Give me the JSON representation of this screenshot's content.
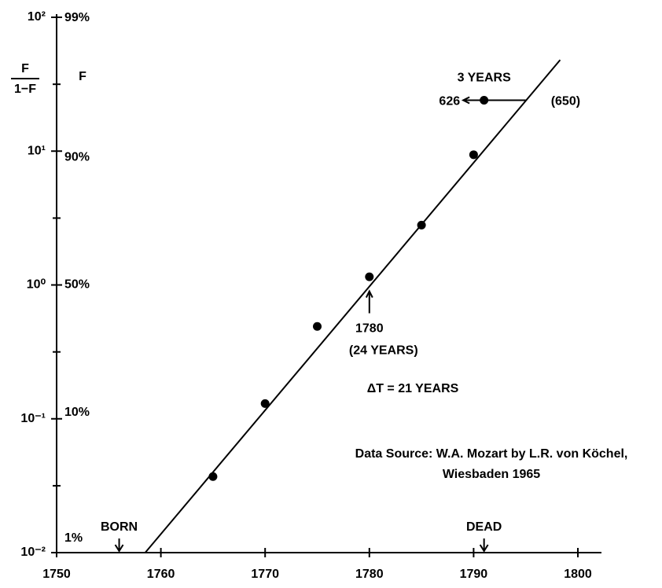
{
  "chart_data": {
    "type": "scatter",
    "y_axis_label_num": "F",
    "y_axis_label_den": "1−F",
    "f_axis_label": "F",
    "x": [
      1765,
      1770,
      1775,
      1780,
      1785,
      1790,
      1791
    ],
    "values": [
      0.037,
      0.13,
      0.49,
      1.15,
      2.8,
      9.4,
      24
    ],
    "color": "#000000",
    "log_y": true,
    "xlim": [
      1750,
      1800
    ],
    "xticks": [
      1750,
      1760,
      1770,
      1780,
      1790,
      1800
    ],
    "ylim": [
      0.01,
      100
    ],
    "yticks": [
      {
        "value": 100,
        "label": "10²"
      },
      {
        "value": 10,
        "label": "10¹"
      },
      {
        "value": 1,
        "label": "10⁰"
      },
      {
        "value": 0.1,
        "label": "10⁻¹"
      },
      {
        "value": 0.01,
        "label": "10⁻²"
      }
    ],
    "yminor": [
      31.6,
      3.16,
      0.316,
      0.0316
    ],
    "f_ticks": [
      {
        "value": 99,
        "label": "99%"
      },
      {
        "value": 90,
        "label": "90%"
      },
      {
        "value": 50,
        "label": "50%"
      },
      {
        "value": 10,
        "label": "10%"
      },
      {
        "value": 1,
        "label": "1%"
      }
    ],
    "fit_line": {
      "x": [
        1758.5,
        1798.3
      ],
      "values": [
        0.01,
        48
      ]
    },
    "range_bar": {
      "x": [
        1789,
        1795
      ],
      "y": 24,
      "label_top": "3 YEARS",
      "label_left": "626",
      "label_right": "(650)"
    },
    "midpoint": {
      "x": 1780,
      "label": "1780",
      "sublabel": "(24 YEARS)"
    },
    "delta_label": "ΔT = 21 YEARS",
    "source": [
      "Data Source: W.A. Mozart by L.R. von Köchel,",
      "Wiesbaden 1965"
    ],
    "born": {
      "x": 1756,
      "label": "BORN"
    },
    "dead": {
      "x": 1791,
      "label": "DEAD"
    }
  }
}
